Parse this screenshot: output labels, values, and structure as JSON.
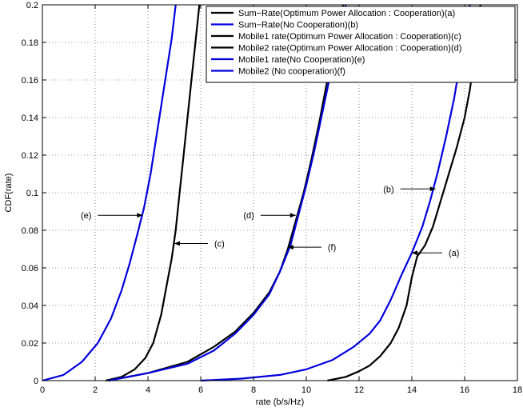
{
  "chart_data": {
    "type": "line",
    "title": "",
    "xlabel": "rate (b/s/Hz)",
    "ylabel": "CDF(rate)",
    "xlim": [
      0,
      18
    ],
    "ylim": [
      0,
      0.2
    ],
    "xticks": [
      "0",
      "2",
      "4",
      "6",
      "8",
      "10",
      "12",
      "14",
      "16",
      "18"
    ],
    "yticks": [
      "0",
      "0.02",
      "0.04",
      "0.06",
      "0.08",
      "0.1",
      "0.12",
      "0.14",
      "0.16",
      "0.18",
      "0.2"
    ],
    "grid": true,
    "legend_position": "top-right",
    "series": [
      {
        "name": "Sum−Rate(Optimum Power Allocation : Cooperation)(a)",
        "color": "#000000",
        "x": [
          10.8,
          11.5,
          12,
          12.4,
          12.8,
          13.2,
          13.5,
          13.8,
          14.0,
          14.2,
          14.5,
          14.8,
          15.1,
          15.4,
          15.7,
          16.0,
          16.2,
          16.4,
          16.6
        ],
        "y": [
          0.0,
          0.002,
          0.005,
          0.008,
          0.013,
          0.02,
          0.028,
          0.04,
          0.055,
          0.066,
          0.072,
          0.082,
          0.096,
          0.11,
          0.124,
          0.14,
          0.155,
          0.175,
          0.2
        ]
      },
      {
        "name": "Sum−Rate(No Cooperation)(b)",
        "color": "#0000dd",
        "x": [
          6,
          7.5,
          9,
          10,
          11,
          11.8,
          12.4,
          12.8,
          13.2,
          13.6,
          14.0,
          14.4,
          14.7,
          15.0,
          15.3,
          15.6,
          15.9,
          16.2
        ],
        "y": [
          0.0,
          0.001,
          0.003,
          0.006,
          0.011,
          0.018,
          0.025,
          0.032,
          0.043,
          0.056,
          0.068,
          0.082,
          0.096,
          0.112,
          0.13,
          0.15,
          0.175,
          0.2
        ]
      },
      {
        "name": "Mobile1 rate(Optimum Power Allocation : Cooperation)(c)",
        "color": "#000000",
        "x": [
          2.4,
          3.0,
          3.5,
          3.9,
          4.2,
          4.5,
          4.7,
          4.9,
          5.05,
          5.2,
          5.35,
          5.5,
          5.65,
          5.8,
          5.95
        ],
        "y": [
          0.0,
          0.002,
          0.006,
          0.012,
          0.02,
          0.035,
          0.05,
          0.065,
          0.08,
          0.1,
          0.12,
          0.14,
          0.16,
          0.18,
          0.2
        ]
      },
      {
        "name": "Mobile2 rate(Optimum Power Allocation : Cooperation)(d)",
        "color": "#000000",
        "x": [
          2.5,
          4.0,
          5.5,
          6.5,
          7.3,
          8.0,
          8.6,
          9.0,
          9.3,
          9.6,
          9.9,
          10.2,
          10.5,
          10.8,
          11.1,
          11.4
        ],
        "y": [
          0.0,
          0.004,
          0.01,
          0.018,
          0.026,
          0.036,
          0.047,
          0.058,
          0.07,
          0.085,
          0.1,
          0.118,
          0.138,
          0.16,
          0.18,
          0.2
        ]
      },
      {
        "name": "Mobile1 rate(No Cooperation)(e)",
        "color": "#0000dd",
        "x": [
          0.0,
          0.8,
          1.5,
          2.1,
          2.6,
          3.0,
          3.3,
          3.6,
          3.85,
          4.1,
          4.3,
          4.5,
          4.7,
          4.9,
          5.05
        ],
        "y": [
          0.0,
          0.003,
          0.01,
          0.02,
          0.033,
          0.048,
          0.062,
          0.078,
          0.092,
          0.11,
          0.128,
          0.146,
          0.164,
          0.182,
          0.2
        ]
      },
      {
        "name": "Mobile2 (No cooperation)(f)",
        "color": "#0000dd",
        "x": [
          2.5,
          4.0,
          5.5,
          6.5,
          7.3,
          8.0,
          8.6,
          9.0,
          9.4,
          9.7,
          10.0,
          10.3,
          10.6,
          10.9,
          11.2,
          11.5
        ],
        "y": [
          0.0,
          0.004,
          0.009,
          0.016,
          0.025,
          0.035,
          0.046,
          0.058,
          0.072,
          0.088,
          0.104,
          0.122,
          0.142,
          0.162,
          0.182,
          0.2
        ]
      }
    ],
    "annotations": [
      {
        "text": "(a)",
        "x": 14.0,
        "y": 0.068
      },
      {
        "text": "(b)",
        "x": 14.9,
        "y": 0.102
      },
      {
        "text": "(c)",
        "x": 5.0,
        "y": 0.073
      },
      {
        "text": "(d)",
        "x": 9.6,
        "y": 0.088
      },
      {
        "text": "(e)",
        "x": 3.8,
        "y": 0.088
      },
      {
        "text": "(f)",
        "x": 9.3,
        "y": 0.071
      }
    ]
  }
}
